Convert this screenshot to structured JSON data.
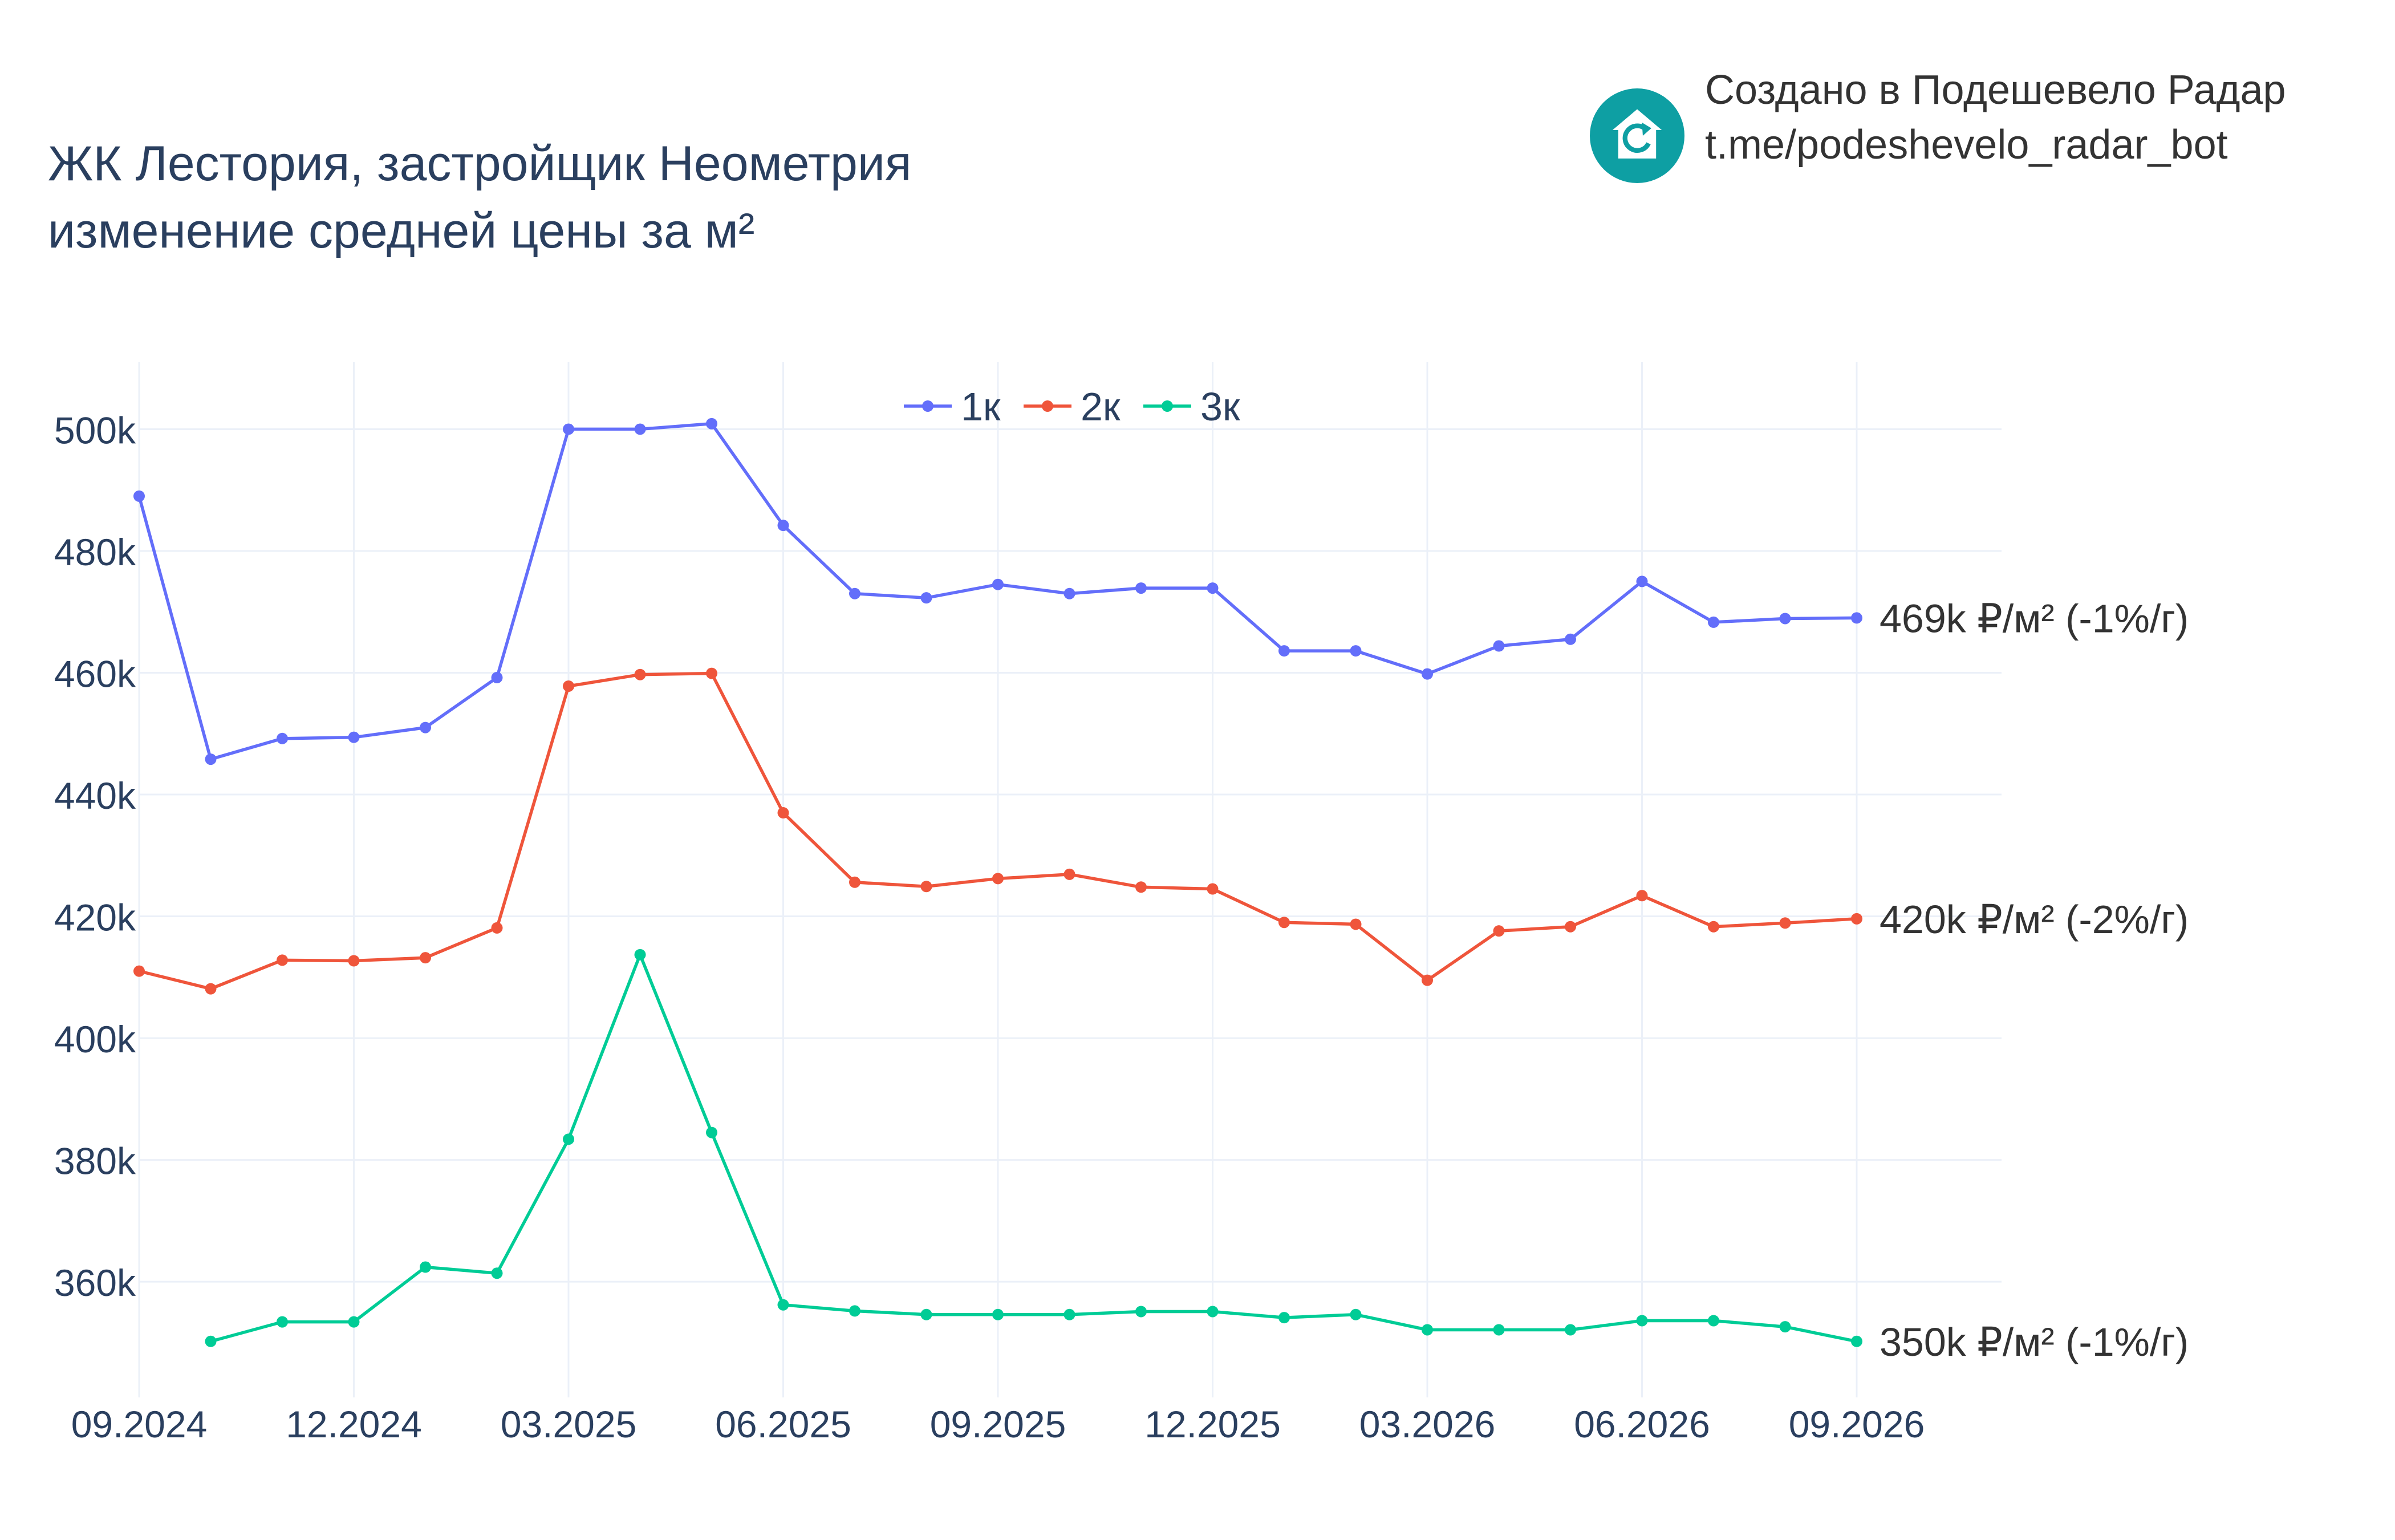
{
  "header": {
    "title_line1": "ЖК Лестория, застройщик Неометрия",
    "title_line2": "изменение средней цены за м²"
  },
  "brand": {
    "line1": "Создано в Подешевело Радар",
    "line2": "t.me/podeshevelo_radar_bot",
    "logo_icon": "house-refresh-icon",
    "logo_color": "#0e9fa3"
  },
  "chart_data": {
    "type": "line",
    "x": [
      "2024-09",
      "2024-10",
      "2024-11",
      "2024-12",
      "2025-01",
      "2025-02",
      "2025-03",
      "2025-04",
      "2025-05",
      "2025-06",
      "2025-07",
      "2025-08",
      "2025-09",
      "2025-10",
      "2025-11",
      "2025-12",
      "2026-01",
      "2026-02",
      "2026-03",
      "2026-04",
      "2026-05",
      "2026-06",
      "2026-07",
      "2026-08",
      "2026-09"
    ],
    "xticks": [
      "09.2024",
      "12.2024",
      "03.2025",
      "06.2025",
      "09.2025",
      "12.2025",
      "03.2026",
      "06.2026",
      "09.2026"
    ],
    "yticks": [
      "360k",
      "380k",
      "400k",
      "420k",
      "440k",
      "460k",
      "480k",
      "500k"
    ],
    "ytick_values": [
      360000,
      380000,
      400000,
      420000,
      440000,
      460000,
      480000,
      500000
    ],
    "ylim": [
      341000,
      511000
    ],
    "grid": true,
    "legend_position": "top-center",
    "series": [
      {
        "name": "1к",
        "color": "#636efa",
        "values": [
          489000,
          445800,
          449200,
          449400,
          451000,
          459200,
          500000,
          500000,
          500900,
          484200,
          473000,
          472300,
          474500,
          473000,
          473900,
          473900,
          463600,
          463600,
          459800,
          464400,
          465500,
          475000,
          468300,
          468900,
          469000
        ],
        "end_label": "469k ₽/м² (-1%/г)"
      },
      {
        "name": "2к",
        "color": "#ef553b",
        "values": [
          411000,
          408100,
          412800,
          412700,
          413200,
          418100,
          457800,
          459700,
          459900,
          437000,
          425600,
          424900,
          426200,
          426900,
          424800,
          424500,
          419000,
          418700,
          409500,
          417600,
          418300,
          423400,
          418300,
          418900,
          419600
        ],
        "end_label": "420k ₽/м² (-2%/г)"
      },
      {
        "name": "3к",
        "color": "#00cc96",
        "values": [
          null,
          350200,
          353400,
          353400,
          362400,
          361400,
          383400,
          413700,
          384500,
          356200,
          355200,
          354600,
          354600,
          354600,
          355100,
          355100,
          354100,
          354600,
          352100,
          352100,
          352100,
          353600,
          353600,
          352600,
          350200
        ],
        "end_label": "350k ₽/м² (-1%/г)"
      }
    ]
  }
}
